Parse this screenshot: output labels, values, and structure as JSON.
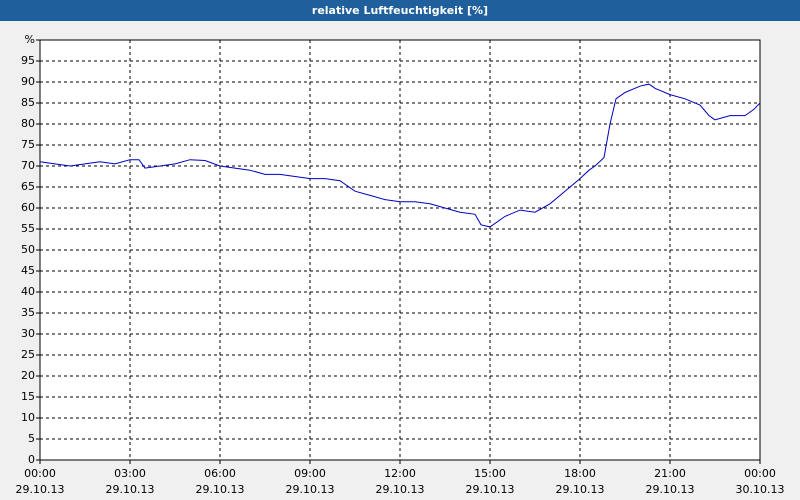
{
  "chart_data": {
    "type": "line",
    "title": "relative Luftfeuchtigkeit [%]",
    "x": [
      0,
      0.5,
      1,
      1.5,
      2,
      2.5,
      3,
      3.3,
      3.5,
      4,
      4.5,
      5,
      5.5,
      6,
      6.5,
      7,
      7.5,
      8,
      8.5,
      9,
      9.5,
      10,
      10.5,
      11,
      11.5,
      12,
      12.5,
      13,
      13.5,
      14,
      14.5,
      14.7,
      15,
      15.5,
      16,
      16.5,
      17,
      17.5,
      18,
      18.3,
      18.5,
      18.8,
      19,
      19.2,
      19.5,
      20,
      20.3,
      20.5,
      21,
      21.5,
      22,
      22.3,
      22.5,
      23,
      23.5,
      23.8,
      24
    ],
    "series": [
      {
        "name": "relative Luftfeuchtigkeit",
        "color": "#0000c0",
        "values": [
          71,
          70.5,
          70,
          70.5,
          71,
          70.5,
          71.5,
          71.5,
          69.5,
          70,
          70.5,
          71.5,
          71.3,
          70,
          69.5,
          69,
          68,
          68,
          67.5,
          67,
          67,
          66.5,
          64,
          63,
          62,
          61.5,
          61.5,
          61,
          60,
          59,
          58.5,
          56,
          55.5,
          58,
          59.5,
          59,
          61,
          64,
          67,
          69,
          70,
          72,
          80,
          86,
          87.5,
          89,
          89.5,
          88.5,
          87,
          86,
          84.5,
          82,
          81,
          82,
          82,
          83.5,
          85
        ]
      }
    ],
    "xlim": [
      0,
      24
    ],
    "xticks": [
      {
        "value": 0,
        "label": "00:00 29.10.13"
      },
      {
        "value": 3,
        "label": "03:00 29.10.13"
      },
      {
        "value": 6,
        "label": "06:00 29.10.13"
      },
      {
        "value": 9,
        "label": "09:00 29.10.13"
      },
      {
        "value": 12,
        "label": "12:00 29.10.13"
      },
      {
        "value": 15,
        "label": "15:00 29.10.13"
      },
      {
        "value": 18,
        "label": "18:00 29.10.13"
      },
      {
        "value": 21,
        "label": "21:00 29.10.13"
      },
      {
        "value": 24,
        "label": "00:00 30.10.13"
      }
    ],
    "ylim": [
      0,
      100
    ],
    "yticks": [
      0,
      5,
      10,
      15,
      20,
      25,
      30,
      35,
      40,
      45,
      50,
      55,
      60,
      65,
      70,
      75,
      80,
      85,
      90,
      95,
      {
        "value": 100,
        "label": "%"
      }
    ],
    "grid": true
  }
}
